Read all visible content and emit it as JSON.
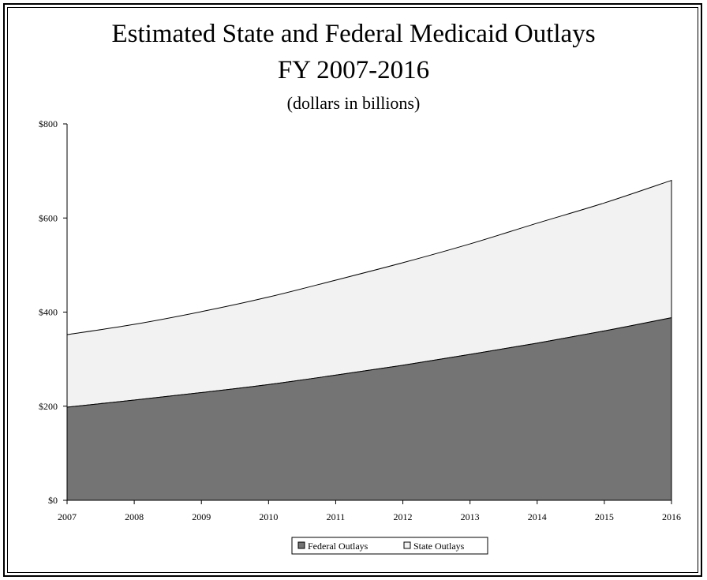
{
  "chart_data": {
    "type": "area",
    "stacked": true,
    "title": "Estimated State and Federal Medicaid Outlays",
    "subtitle": "FY 2007-2016",
    "subtitle2": "(dollars in billions)",
    "x": [
      "2007",
      "2008",
      "2009",
      "2010",
      "2011",
      "2012",
      "2013",
      "2014",
      "2015",
      "2016"
    ],
    "series": [
      {
        "name": "Federal Outlays",
        "color": "#747474",
        "values": [
          198,
          213,
          229,
          246,
          266,
          287,
          310,
          334,
          360,
          388
        ]
      },
      {
        "name": "State Outlays",
        "color": "#f2f2f2",
        "values": [
          154,
          161,
          172,
          186,
          202,
          218,
          235,
          255,
          272,
          292
        ]
      }
    ],
    "ylim": [
      0,
      800
    ],
    "yticks": [
      0,
      200,
      400,
      600,
      800
    ],
    "ytick_labels": [
      "$0",
      "$200",
      "$400",
      "$600",
      "$800"
    ],
    "legend": "bottom",
    "grid": false
  }
}
